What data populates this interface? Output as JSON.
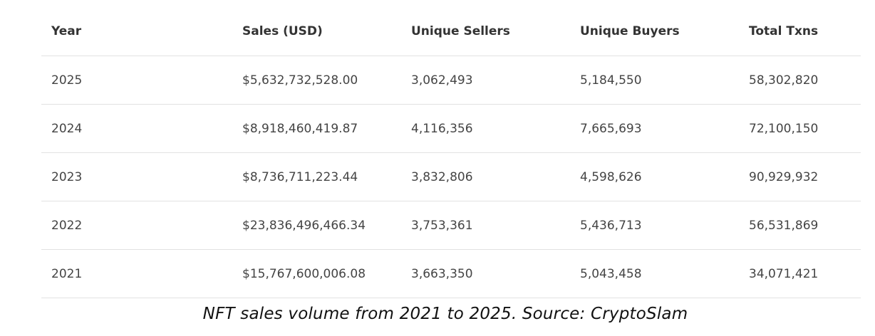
{
  "chart_data": {
    "type": "table",
    "columns": [
      "Year",
      "Sales (USD)",
      "Unique Sellers",
      "Unique Buyers",
      "Total Txns"
    ],
    "rows": [
      [
        "2025",
        "$5,632,732,528.00",
        "3,062,493",
        "5,184,550",
        "58,302,820"
      ],
      [
        "2024",
        "$8,918,460,419.87",
        "4,116,356",
        "7,665,693",
        "72,100,150"
      ],
      [
        "2023",
        "$8,736,711,223.44",
        "3,832,806",
        "4,598,626",
        "90,929,932"
      ],
      [
        "2022",
        "$23,836,496,466.34",
        "3,753,361",
        "5,436,713",
        "56,531,869"
      ],
      [
        "2021",
        "$15,767,600,006.08",
        "3,663,350",
        "5,043,458",
        "34,071,421"
      ]
    ],
    "caption": "NFT sales volume from 2021 to 2025. Source: CryptoSlam"
  }
}
